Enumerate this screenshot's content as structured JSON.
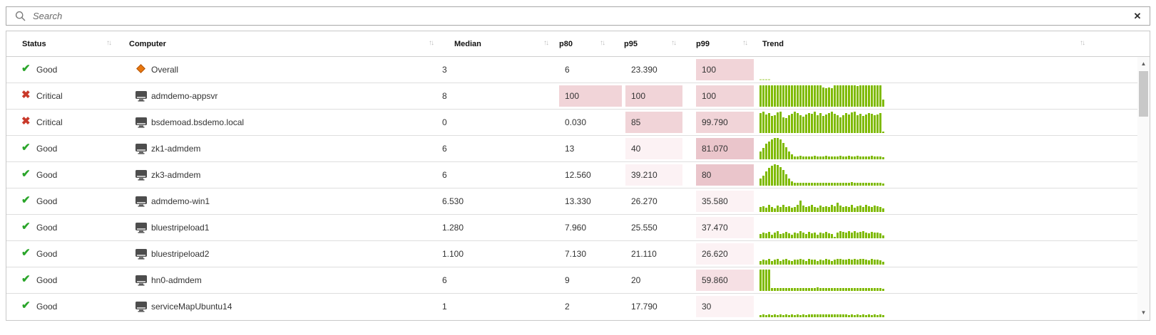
{
  "search": {
    "placeholder": "Search",
    "clear_label": "✕"
  },
  "icons": {
    "sort": "↑↓",
    "good": "✔",
    "critical": "✖",
    "scroll_up": "▲",
    "scroll_down": "▼"
  },
  "colors": {
    "bar_green": "#7fba00",
    "bar_light_green": "#cfe69f",
    "good_green": "#2aa52a",
    "critical_red": "#c9392a",
    "overall_orange": "#e8770f",
    "highlight_light": "#fcf2f4",
    "highlight_medium": "#f6e0e4",
    "highlight_strong": "#f1d4d8",
    "highlight_darker": "#eac5cb"
  },
  "table": {
    "columns": [
      {
        "key": "status",
        "label": "Status"
      },
      {
        "key": "computer",
        "label": "Computer"
      },
      {
        "key": "median",
        "label": "Median"
      },
      {
        "key": "p80",
        "label": "p80"
      },
      {
        "key": "p95",
        "label": "p95"
      },
      {
        "key": "p99",
        "label": "p99"
      },
      {
        "key": "trend",
        "label": "Trend"
      }
    ],
    "rows": [
      {
        "status": "Good",
        "status_kind": "good",
        "computer": "Overall",
        "computer_icon": "diamond",
        "median": {
          "v": "3",
          "h": "none"
        },
        "p80": {
          "v": "6",
          "h": "none"
        },
        "p95": {
          "v": "23.390",
          "h": "none"
        },
        "p99": {
          "v": "100",
          "h": "strong"
        },
        "trend": {
          "color": "light",
          "bars": [
            6,
            6,
            6,
            6,
            0,
            0,
            0,
            0,
            0,
            0,
            0,
            0,
            0,
            0,
            0,
            0,
            0,
            0,
            0,
            0,
            0,
            0,
            0,
            0,
            0,
            0,
            0,
            0,
            0,
            0,
            0,
            0,
            0,
            0,
            0,
            0,
            0,
            0,
            0,
            0,
            0,
            0,
            0,
            0
          ]
        }
      },
      {
        "status": "Critical",
        "status_kind": "critical",
        "computer": "admdemo-appsvr",
        "computer_icon": "monitor",
        "median": {
          "v": "8",
          "h": "none"
        },
        "p80": {
          "v": "100",
          "h": "strong"
        },
        "p95": {
          "v": "100",
          "h": "strong"
        },
        "p99": {
          "v": "100",
          "h": "strong"
        },
        "trend": {
          "color": "normal",
          "bars": [
            100,
            100,
            100,
            100,
            100,
            100,
            100,
            100,
            100,
            100,
            100,
            100,
            100,
            100,
            100,
            100,
            100,
            100,
            100,
            100,
            100,
            100,
            90,
            86,
            90,
            88,
            100,
            100,
            100,
            100,
            100,
            100,
            100,
            100,
            96,
            100,
            100,
            100,
            100,
            100,
            100,
            100,
            100,
            32
          ]
        }
      },
      {
        "status": "Critical",
        "status_kind": "critical",
        "computer": "bsdemoad.bsdemo.local",
        "computer_icon": "monitor",
        "median": {
          "v": "0",
          "h": "none"
        },
        "p80": {
          "v": "0.030",
          "h": "none"
        },
        "p95": {
          "v": "85",
          "h": "strong"
        },
        "p99": {
          "v": "99.790",
          "h": "strong"
        },
        "trend": {
          "color": "normal",
          "bars": [
            92,
            100,
            88,
            95,
            80,
            85,
            96,
            100,
            75,
            70,
            82,
            90,
            100,
            95,
            85,
            78,
            88,
            95,
            90,
            100,
            85,
            92,
            80,
            88,
            95,
            100,
            90,
            82,
            75,
            85,
            92,
            88,
            96,
            100,
            85,
            90,
            80,
            86,
            94,
            90,
            85,
            88,
            92,
            8
          ]
        }
      },
      {
        "status": "Good",
        "status_kind": "good",
        "computer": "zk1-admdem",
        "computer_icon": "monitor",
        "median": {
          "v": "6",
          "h": "none"
        },
        "p80": {
          "v": "13",
          "h": "none"
        },
        "p95": {
          "v": "40",
          "h": "light"
        },
        "p99": {
          "v": "81.070",
          "h": "darker"
        },
        "trend": {
          "color": "normal",
          "bars": [
            38,
            55,
            72,
            85,
            95,
            100,
            100,
            92,
            78,
            58,
            38,
            22,
            15,
            12,
            16,
            13,
            15,
            12,
            14,
            16,
            12,
            15,
            13,
            16,
            12,
            14,
            15,
            12,
            16,
            13,
            15,
            18,
            14,
            12,
            16,
            13,
            15,
            12,
            14,
            16,
            13,
            15,
            12,
            10
          ]
        }
      },
      {
        "status": "Good",
        "status_kind": "good",
        "computer": "zk3-admdem",
        "computer_icon": "monitor",
        "median": {
          "v": "6",
          "h": "none"
        },
        "p80": {
          "v": "12.560",
          "h": "none"
        },
        "p95": {
          "v": "39.210",
          "h": "light"
        },
        "p99": {
          "v": "80",
          "h": "darker"
        },
        "trend": {
          "color": "normal",
          "bars": [
            32,
            48,
            66,
            82,
            94,
            100,
            96,
            88,
            72,
            52,
            32,
            20,
            14,
            12,
            15,
            13,
            14,
            12,
            15,
            13,
            12,
            14,
            15,
            12,
            13,
            15,
            12,
            14,
            13,
            15,
            12,
            14,
            16,
            13,
            12,
            14,
            15,
            12,
            14,
            13,
            15,
            12,
            14,
            10
          ]
        }
      },
      {
        "status": "Good",
        "status_kind": "good",
        "computer": "admdemo-win1",
        "computer_icon": "monitor",
        "median": {
          "v": "6.530",
          "h": "none"
        },
        "p80": {
          "v": "13.330",
          "h": "none"
        },
        "p95": {
          "v": "26.270",
          "h": "none"
        },
        "p99": {
          "v": "35.580",
          "h": "light"
        },
        "trend": {
          "color": "normal",
          "bars": [
            22,
            28,
            20,
            32,
            25,
            18,
            30,
            24,
            35,
            22,
            28,
            20,
            25,
            32,
            55,
            30,
            22,
            28,
            35,
            25,
            20,
            30,
            24,
            28,
            22,
            35,
            26,
            45,
            30,
            22,
            28,
            24,
            32,
            20,
            26,
            30,
            24,
            35,
            28,
            22,
            30,
            26,
            24,
            18
          ]
        }
      },
      {
        "status": "Good",
        "status_kind": "good",
        "computer": "bluestripeload1",
        "computer_icon": "monitor",
        "median": {
          "v": "1.280",
          "h": "none"
        },
        "p80": {
          "v": "7.960",
          "h": "none"
        },
        "p95": {
          "v": "25.550",
          "h": "none"
        },
        "p99": {
          "v": "37.470",
          "h": "light"
        },
        "trend": {
          "color": "normal",
          "bars": [
            20,
            28,
            22,
            30,
            18,
            26,
            32,
            20,
            25,
            30,
            22,
            18,
            28,
            24,
            32,
            26,
            20,
            30,
            24,
            28,
            18,
            26,
            22,
            30,
            25,
            20,
            8,
            28,
            32,
            30,
            26,
            34,
            28,
            32,
            26,
            30,
            34,
            28,
            24,
            30,
            26,
            28,
            24,
            12
          ]
        }
      },
      {
        "status": "Good",
        "status_kind": "good",
        "computer": "bluestripeload2",
        "computer_icon": "monitor",
        "median": {
          "v": "1.100",
          "h": "none"
        },
        "p80": {
          "v": "7.130",
          "h": "none"
        },
        "p95": {
          "v": "21.110",
          "h": "none"
        },
        "p99": {
          "v": "26.620",
          "h": "light"
        },
        "trend": {
          "color": "normal",
          "bars": [
            18,
            24,
            20,
            28,
            16,
            22,
            26,
            18,
            24,
            28,
            20,
            16,
            24,
            22,
            28,
            24,
            18,
            26,
            22,
            24,
            16,
            22,
            20,
            26,
            22,
            18,
            24,
            26,
            28,
            24,
            22,
            26,
            24,
            28,
            22,
            26,
            28,
            24,
            20,
            26,
            22,
            24,
            20,
            14
          ]
        }
      },
      {
        "status": "Good",
        "status_kind": "good",
        "computer": "hn0-admdem",
        "computer_icon": "monitor",
        "median": {
          "v": "6",
          "h": "none"
        },
        "p80": {
          "v": "9",
          "h": "none"
        },
        "p95": {
          "v": "20",
          "h": "none"
        },
        "p99": {
          "v": "59.860",
          "h": "medium"
        },
        "trend": {
          "color": "normal",
          "bars": [
            100,
            100,
            100,
            100,
            14,
            12,
            14,
            13,
            12,
            14,
            13,
            12,
            14,
            12,
            13,
            14,
            12,
            13,
            12,
            14,
            16,
            15,
            14,
            12,
            13,
            14,
            12,
            14,
            13,
            12,
            14,
            13,
            12,
            14,
            12,
            13,
            14,
            12,
            13,
            14,
            12,
            13,
            12,
            9
          ]
        }
      },
      {
        "status": "Good",
        "status_kind": "good",
        "computer": "serviceMapUbuntu14",
        "computer_icon": "monitor",
        "median": {
          "v": "1",
          "h": "none"
        },
        "p80": {
          "v": "2",
          "h": "none"
        },
        "p95": {
          "v": "17.790",
          "h": "none"
        },
        "p99": {
          "v": "30",
          "h": "light"
        },
        "trend": {
          "color": "normal",
          "bars": [
            11,
            12,
            11,
            12,
            11,
            12,
            11,
            12,
            11,
            12,
            11,
            12,
            11,
            12,
            11,
            12,
            11,
            12,
            14,
            13,
            14,
            13,
            12,
            14,
            15,
            14,
            13,
            14,
            12,
            13,
            12,
            11,
            12,
            11,
            12,
            11,
            12,
            11,
            12,
            11,
            12,
            11,
            12,
            10
          ]
        }
      }
    ]
  }
}
